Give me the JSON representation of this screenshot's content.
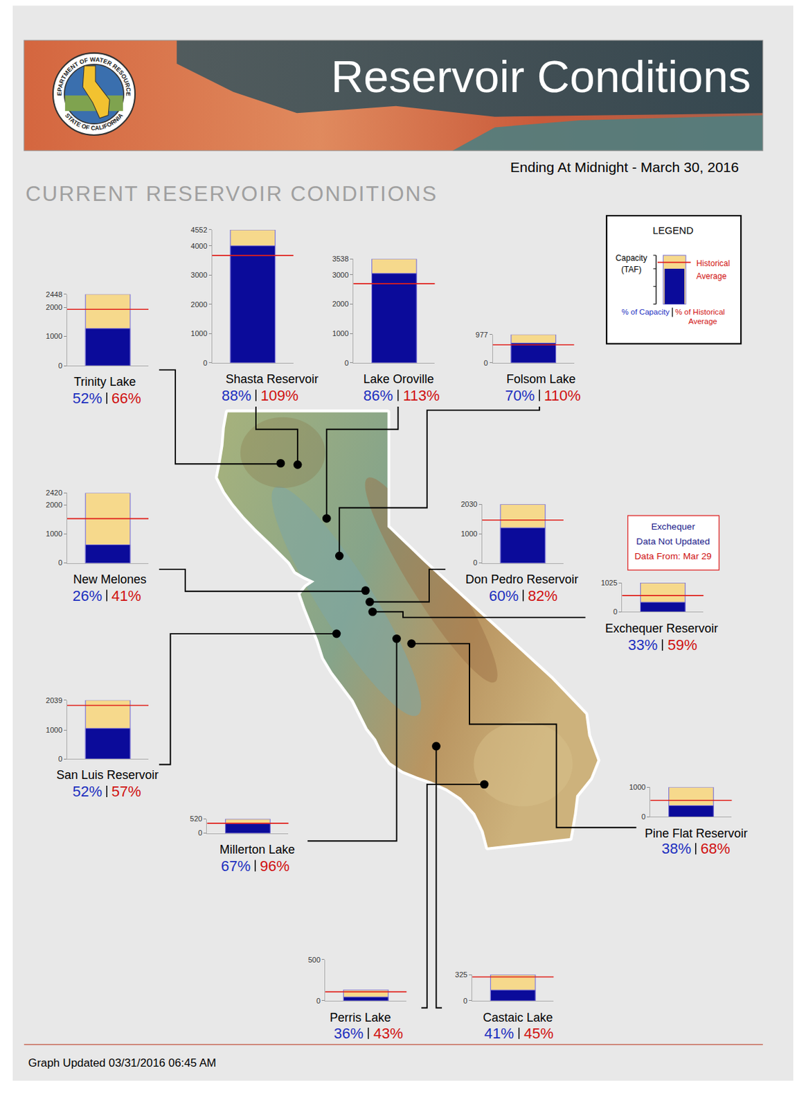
{
  "page": {
    "header": {
      "title": "Reservoir Conditions",
      "seal_top": "DEPARTMENT OF WATER RESOURCES",
      "seal_bottom": "STATE OF CALIFORNIA"
    },
    "date_line": "Ending At Midnight - March 30, 2016",
    "section_title": "CURRENT RESERVOIR CONDITIONS",
    "legend": {
      "title": "LEGEND",
      "capacity": [
        "Capacity",
        "(TAF)"
      ],
      "historical_average": [
        "Historical",
        "Average"
      ],
      "percent_of_capacity": [
        "% of Capacity"
      ],
      "percent_of_historical_average": [
        "% of Historical",
        "Average"
      ]
    },
    "note": {
      "lines": [
        "Exchequer",
        "Data Not Updated",
        "Data From: Mar 29"
      ]
    },
    "footer": "Graph Updated 03/31/2016 06:45 AM"
  },
  "chart_data": [
    {
      "type": "bar",
      "title": "Trinity Lake",
      "capacity": 2448,
      "storage": 1273,
      "historical_average": 1929,
      "percent_of_capacity": {
        "value": 52,
        "label": "52%"
      },
      "percent_of_historical_average": {
        "value": 66,
        "label": "66%"
      },
      "ylim": [
        0,
        2448
      ],
      "yticks": [
        0,
        1000,
        2000,
        2448
      ],
      "tick_labels": "y"
    },
    {
      "type": "bar",
      "title": "Shasta Reservoir",
      "capacity": 4552,
      "storage": 4006,
      "historical_average": 3675,
      "percent_of_capacity": {
        "value": 88,
        "label": "88%"
      },
      "percent_of_historical_average": {
        "value": 109,
        "label": "109%"
      },
      "ylim": [
        0,
        4552
      ],
      "yticks": [
        0,
        1000,
        2000,
        3000,
        4000,
        4552
      ],
      "tick_labels": "y"
    },
    {
      "type": "bar",
      "title": "Lake Oroville",
      "capacity": 3538,
      "storage": 3043,
      "historical_average": 2693,
      "percent_of_capacity": {
        "value": 86,
        "label": "86%"
      },
      "percent_of_historical_average": {
        "value": 113,
        "label": "113%"
      },
      "ylim": [
        0,
        3538
      ],
      "yticks": [
        0,
        1000,
        2000,
        3000,
        3538
      ],
      "tick_labels": "y"
    },
    {
      "type": "bar",
      "title": "Folsom Lake",
      "capacity": 977,
      "storage": 684,
      "historical_average": 622,
      "percent_of_capacity": {
        "value": 70,
        "label": "70%"
      },
      "percent_of_historical_average": {
        "value": 110,
        "label": "110%"
      },
      "ylim": [
        0,
        977
      ],
      "yticks": [
        0,
        977
      ],
      "tick_labels": "y"
    },
    {
      "type": "bar",
      "title": "New Melones",
      "capacity": 2420,
      "storage": 629,
      "historical_average": 1534,
      "percent_of_capacity": {
        "value": 26,
        "label": "26%"
      },
      "percent_of_historical_average": {
        "value": 41,
        "label": "41%"
      },
      "ylim": [
        0,
        2420
      ],
      "yticks": [
        0,
        1000,
        2000,
        2420
      ],
      "tick_labels": "y"
    },
    {
      "type": "bar",
      "title": "Don Pedro Reservoir",
      "capacity": 2030,
      "storage": 1218,
      "historical_average": 1485,
      "percent_of_capacity": {
        "value": 60,
        "label": "60%"
      },
      "percent_of_historical_average": {
        "value": 82,
        "label": "82%"
      },
      "ylim": [
        0,
        2030
      ],
      "yticks": [
        0,
        1000,
        2030
      ],
      "tick_labels": "y"
    },
    {
      "type": "bar",
      "title": "Exchequer Reservoir",
      "capacity": 1025,
      "storage": 338,
      "historical_average": 573,
      "percent_of_capacity": {
        "value": 33,
        "label": "33%"
      },
      "percent_of_historical_average": {
        "value": 59,
        "label": "59%"
      },
      "ylim": [
        0,
        1025
      ],
      "yticks": [
        0,
        1025
      ],
      "tick_labels": "y"
    },
    {
      "type": "bar",
      "title": "San Luis Reservoir",
      "capacity": 2039,
      "storage": 1060,
      "historical_average": 1860,
      "percent_of_capacity": {
        "value": 52,
        "label": "52%"
      },
      "percent_of_historical_average": {
        "value": 57,
        "label": "57%"
      },
      "ylim": [
        0,
        2039
      ],
      "yticks": [
        0,
        1000,
        2039
      ],
      "tick_labels": "y"
    },
    {
      "type": "bar",
      "title": "Millerton Lake",
      "capacity": 520,
      "storage": 348,
      "historical_average": 363,
      "percent_of_capacity": {
        "value": 67,
        "label": "67%"
      },
      "percent_of_historical_average": {
        "value": 96,
        "label": "96%"
      },
      "ylim": [
        0,
        520
      ],
      "yticks": [
        0,
        520
      ],
      "tick_labels": "y"
    },
    {
      "type": "bar",
      "title": "Pine Flat Reservoir",
      "capacity": 1000,
      "storage": 380,
      "historical_average": 559,
      "percent_of_capacity": {
        "value": 38,
        "label": "38%"
      },
      "percent_of_historical_average": {
        "value": 68,
        "label": "68%"
      },
      "ylim": [
        0,
        1000
      ],
      "yticks": [
        0,
        1000
      ],
      "tick_labels": "y"
    },
    {
      "type": "bar",
      "title": "Perris Lake",
      "capacity": 131,
      "storage": 47,
      "historical_average": 110,
      "percent_of_capacity": {
        "value": 36,
        "label": "36%"
      },
      "percent_of_historical_average": {
        "value": 43,
        "label": "43%"
      },
      "ylim": [
        0,
        500
      ],
      "yticks": [
        0,
        500
      ],
      "tick_labels": "y"
    },
    {
      "type": "bar",
      "title": "Castaic Lake",
      "capacity": 325,
      "storage": 133,
      "historical_average": 296,
      "percent_of_capacity": {
        "value": 41,
        "label": "41%"
      },
      "percent_of_historical_average": {
        "value": 45,
        "label": "45%"
      },
      "ylim": [
        0,
        325
      ],
      "yticks": [
        0,
        325
      ],
      "tick_labels": "y"
    }
  ]
}
